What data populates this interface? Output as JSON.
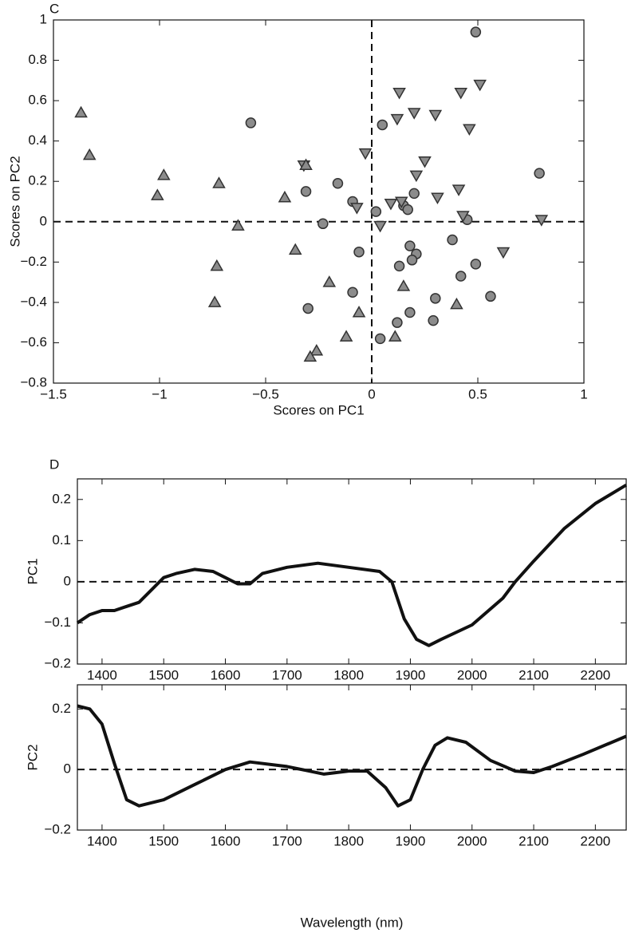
{
  "chart_data": [
    {
      "type": "scatter",
      "panel_label": "C",
      "xlabel": "Scores on PC1",
      "ylabel": "Scores on PC2",
      "xlim": [
        -1.5,
        1
      ],
      "ylim": [
        -0.8,
        1
      ],
      "xticks": [
        {
          "value": -1.5,
          "label": "−1.5"
        },
        {
          "value": -1,
          "label": "−1"
        },
        {
          "value": -0.5,
          "label": "−0.5"
        },
        0,
        0.5,
        1
      ],
      "yticks": [
        {
          "value": -0.8,
          "label": "−0.8"
        },
        {
          "value": -0.6,
          "label": "−0.6"
        },
        {
          "value": -0.4,
          "label": "−0.4"
        },
        {
          "value": -0.2,
          "label": "−0.2"
        },
        0,
        0.2,
        0.4,
        0.6,
        0.8,
        1
      ],
      "hline": 0,
      "vline": 0,
      "series": [
        {
          "marker": "circle",
          "color": "#8c8c8c",
          "x": [
            0.49,
            -0.57,
            0.05,
            0.79,
            -0.31,
            -0.16,
            -0.23,
            -0.09,
            0.02,
            0.2,
            0.15,
            0.17,
            0.45,
            0.38,
            0.18,
            0.21,
            0.19,
            0.13,
            0.49,
            0.42,
            -0.06,
            -0.09,
            0.3,
            0.56,
            -0.3,
            0.18,
            0.12,
            0.29,
            0.04
          ],
          "y": [
            0.94,
            0.49,
            0.48,
            0.24,
            0.15,
            0.19,
            -0.01,
            0.1,
            0.05,
            0.14,
            0.08,
            0.06,
            0.01,
            -0.09,
            -0.12,
            -0.16,
            -0.19,
            -0.22,
            -0.21,
            -0.27,
            -0.15,
            -0.35,
            -0.38,
            -0.37,
            -0.43,
            -0.45,
            -0.5,
            -0.49,
            -0.58
          ]
        },
        {
          "marker": "triangle-down",
          "color": "#8c8c8c",
          "x": [
            0.13,
            0.42,
            0.51,
            0.46,
            0.12,
            0.2,
            0.3,
            -0.03,
            0.25,
            0.21,
            -0.32,
            0.09,
            0.14,
            0.31,
            0.41,
            0.43,
            0.8,
            -0.07,
            0.04,
            0.62
          ],
          "y": [
            0.64,
            0.64,
            0.68,
            0.46,
            0.51,
            0.54,
            0.53,
            0.34,
            0.3,
            0.23,
            0.28,
            0.09,
            0.1,
            0.12,
            0.16,
            0.03,
            0.01,
            0.07,
            -0.02,
            -0.15
          ]
        },
        {
          "marker": "triangle-up",
          "color": "#8c8c8c",
          "x": [
            -1.37,
            -1.33,
            -0.98,
            -1.01,
            -0.72,
            -0.63,
            -0.41,
            -0.31,
            -0.36,
            -0.73,
            -0.74,
            -0.2,
            0.15,
            0.4,
            -0.06,
            -0.12,
            0.11,
            -0.26,
            -0.29
          ],
          "y": [
            0.54,
            0.33,
            0.23,
            0.13,
            0.19,
            -0.02,
            0.12,
            0.28,
            -0.14,
            -0.22,
            -0.4,
            -0.3,
            -0.32,
            -0.41,
            -0.45,
            -0.57,
            -0.57,
            -0.64,
            -0.67
          ]
        }
      ]
    },
    {
      "type": "line",
      "panel_label": "D",
      "ylabel": "PC1",
      "xlim": [
        1360,
        2250
      ],
      "ylim": [
        -0.2,
        0.25
      ],
      "xticks": [
        1400,
        1500,
        1600,
        1700,
        1800,
        1900,
        2000,
        2100,
        2200
      ],
      "yticks": [
        {
          "value": -0.2,
          "label": "−0.2"
        },
        {
          "value": -0.1,
          "label": "−0.1"
        },
        0,
        0.1,
        0.2
      ],
      "hline": 0,
      "x": [
        1360,
        1380,
        1400,
        1420,
        1440,
        1460,
        1480,
        1500,
        1520,
        1550,
        1580,
        1600,
        1620,
        1640,
        1660,
        1700,
        1750,
        1800,
        1850,
        1870,
        1890,
        1910,
        1930,
        1950,
        2000,
        2050,
        2070,
        2100,
        2150,
        2200,
        2250
      ],
      "series": [
        {
          "color": "#111111",
          "values": [
            -0.1,
            -0.08,
            -0.07,
            -0.07,
            -0.06,
            -0.05,
            -0.02,
            0.01,
            0.02,
            0.03,
            0.025,
            0.01,
            -0.005,
            -0.005,
            0.02,
            0.035,
            0.045,
            0.035,
            0.025,
            0.0,
            -0.09,
            -0.14,
            -0.155,
            -0.14,
            -0.105,
            -0.04,
            0.0,
            0.05,
            0.13,
            0.19,
            0.235
          ]
        }
      ]
    },
    {
      "type": "line",
      "ylabel": "PC2",
      "xlabel": "Wavelength (nm)",
      "xlim": [
        1360,
        2250
      ],
      "ylim": [
        -0.2,
        0.28
      ],
      "xticks": [
        1400,
        1500,
        1600,
        1700,
        1800,
        1900,
        2000,
        2100,
        2200
      ],
      "yticks": [
        {
          "value": -0.2,
          "label": "−0.2"
        },
        0,
        0.2
      ],
      "hline": 0,
      "x": [
        1360,
        1380,
        1400,
        1420,
        1440,
        1460,
        1500,
        1550,
        1600,
        1640,
        1700,
        1760,
        1800,
        1830,
        1860,
        1880,
        1900,
        1920,
        1940,
        1960,
        1990,
        2030,
        2070,
        2100,
        2130,
        2180,
        2250
      ],
      "series": [
        {
          "color": "#111111",
          "values": [
            0.21,
            0.2,
            0.15,
            0.02,
            -0.1,
            -0.12,
            -0.1,
            -0.05,
            0.0,
            0.025,
            0.01,
            -0.015,
            -0.005,
            -0.005,
            -0.06,
            -0.12,
            -0.1,
            0.0,
            0.08,
            0.105,
            0.09,
            0.03,
            -0.005,
            -0.01,
            0.01,
            0.05,
            0.11
          ]
        }
      ]
    }
  ]
}
